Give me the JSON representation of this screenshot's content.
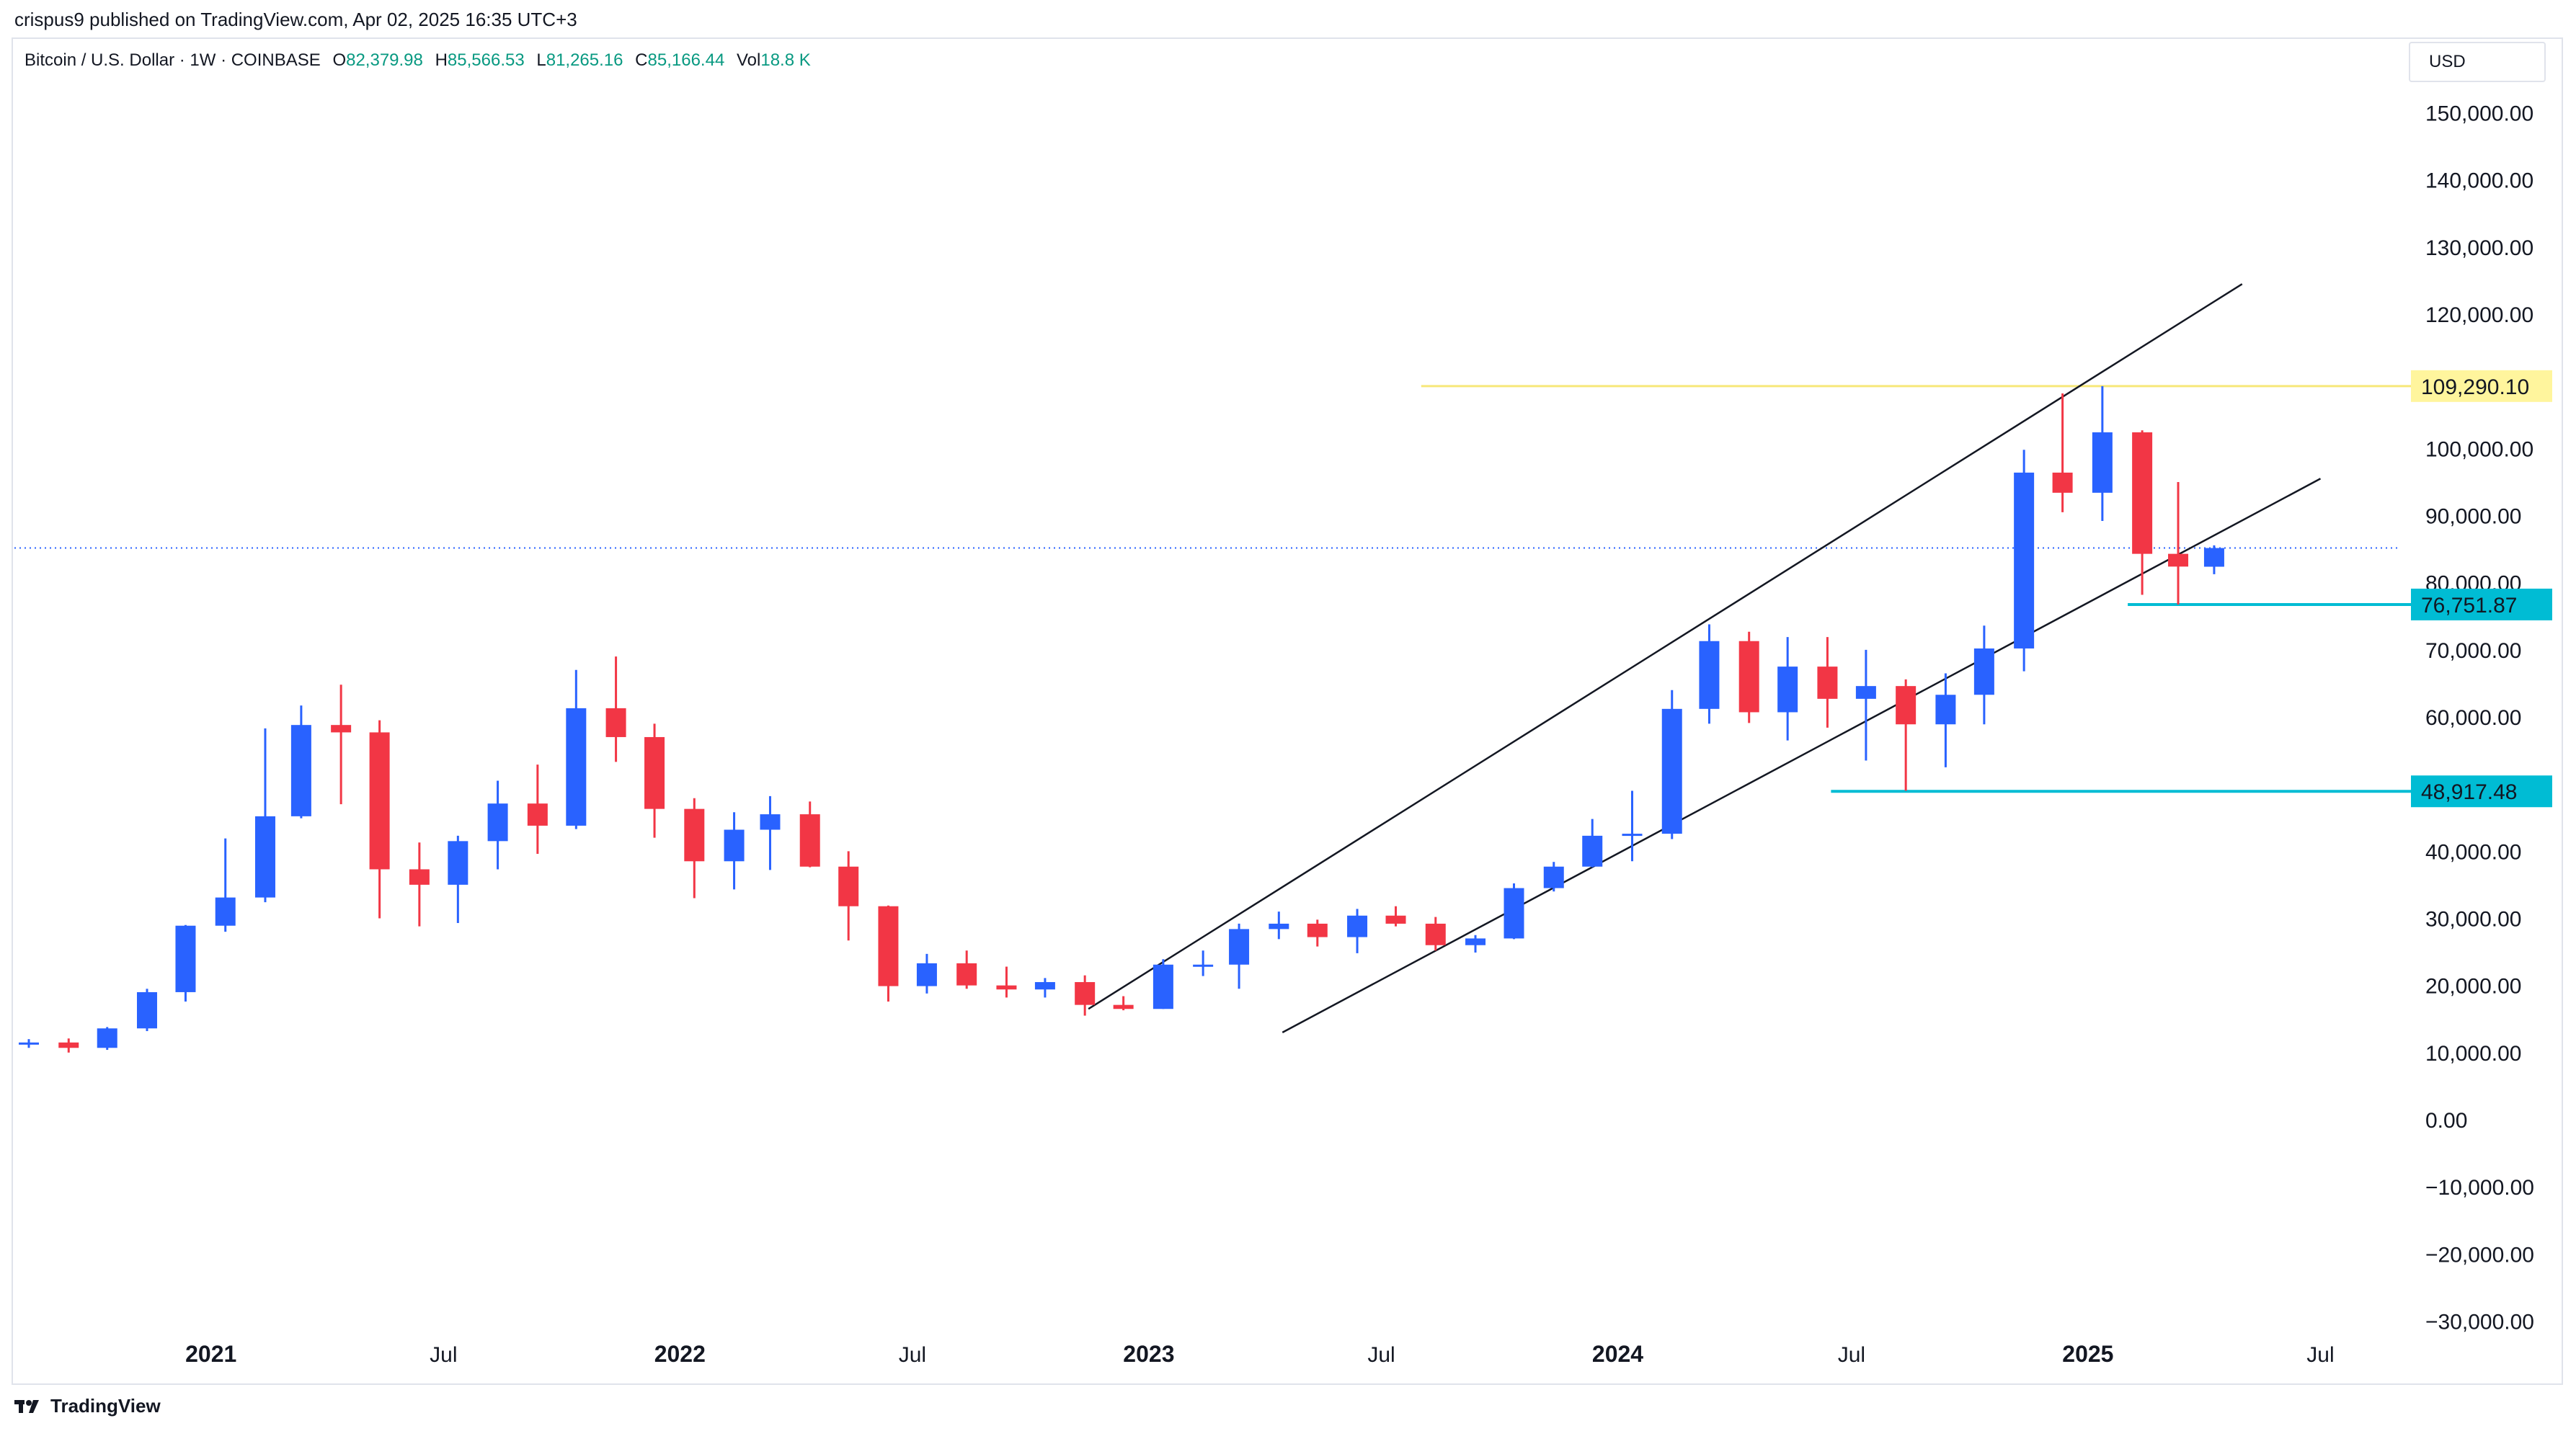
{
  "attribution": "crispus9 published on TradingView.com, Apr 02, 2025 16:35 UTC+3",
  "legend": {
    "symbol": "Bitcoin / U.S. Dollar · 1W · COINBASE",
    "o_label": "O",
    "o_value": "82,379.98",
    "h_label": "H",
    "h_value": "85,566.53",
    "l_label": "L",
    "l_value": "81,265.16",
    "c_label": "C",
    "c_value": "85,166.44",
    "vol_label": "Vol",
    "vol_value": "18.8 K"
  },
  "currency": "USD",
  "brand": "TradingView",
  "chart_data": {
    "type": "candlestick",
    "title": "Bitcoin / U.S. Dollar · 1W · COINBASE",
    "interval": "1W",
    "y_axis": {
      "side": "right",
      "ylim": [
        -35000,
        155000
      ],
      "ticks": [
        150000,
        140000,
        130000,
        120000,
        100000,
        90000,
        80000,
        70000,
        60000,
        40000,
        30000,
        20000,
        10000,
        0,
        -10000,
        -20000,
        -30000
      ],
      "tick_labels": [
        "150,000.00",
        "140,000.00",
        "130,000.00",
        "120,000.00",
        "100,000.00",
        "90,000.00",
        "80,000.00",
        "70,000.00",
        "60,000.00",
        "40,000.00",
        "30,000.00",
        "20,000.00",
        "10,000.00",
        "0.00",
        "−10,000.00",
        "−20,000.00",
        "−30,000.00"
      ]
    },
    "x_axis": {
      "range": [
        "2020-08-01",
        "2025-09-01"
      ],
      "ticks": [
        "2021-01-01",
        "2021-07-01",
        "2022-01-01",
        "2022-07-01",
        "2023-01-01",
        "2023-07-01",
        "2024-01-01",
        "2024-07-01",
        "2025-01-01",
        "2025-07-01"
      ],
      "tick_labels": [
        "2021",
        "Jul",
        "2022",
        "Jul",
        "2023",
        "Jul",
        "2024",
        "Jul",
        "2025",
        "Jul"
      ],
      "bold_labels": [
        "2021",
        "2022",
        "2023",
        "2024",
        "2025"
      ]
    },
    "colors": {
      "up": "#2962ff",
      "down": "#f23645",
      "grid": "#ffffff",
      "yellow_line": "#f7e87a",
      "yellow_label": "#fff59d",
      "cyan": "#00bcd4",
      "trend": "#131722",
      "current_price": "#2962ff"
    },
    "price_levels": [
      {
        "value": 109290.1,
        "label": "109,290.10",
        "color": "yellow",
        "from": "2023-08-01"
      },
      {
        "value": 76751.87,
        "label": "76,751.87",
        "color": "cyan",
        "from": "2025-02-01"
      },
      {
        "value": 48917.48,
        "label": "48,917.48",
        "color": "cyan",
        "from": "2024-06-15"
      }
    ],
    "current_price": 85166.44,
    "trendlines": [
      {
        "name": "upper-channel",
        "start": [
          "2022-11-15",
          16500
        ],
        "end": [
          "2025-05-01",
          124500
        ]
      },
      {
        "name": "lower-channel",
        "start": [
          "2023-04-15",
          13000
        ],
        "end": [
          "2025-07-01",
          95500
        ]
      }
    ],
    "candles": [
      [
        "2020-08-01",
        11200,
        12000,
        10700,
        11500
      ],
      [
        "2020-09-01",
        11500,
        12100,
        10000,
        10700
      ],
      [
        "2020-10-01",
        10700,
        13800,
        10400,
        13600
      ],
      [
        "2020-11-01",
        13600,
        19500,
        13200,
        19000
      ],
      [
        "2020-12-01",
        19000,
        29000,
        17600,
        28900
      ],
      [
        "2021-01-01",
        28900,
        41900,
        28000,
        33100
      ],
      [
        "2021-02-01",
        33100,
        58300,
        32400,
        45200
      ],
      [
        "2021-03-01",
        45200,
        61700,
        44900,
        58800
      ],
      [
        "2021-04-01",
        58800,
        64800,
        47000,
        57700
      ],
      [
        "2021-05-01",
        57700,
        59500,
        30000,
        37300
      ],
      [
        "2021-06-01",
        37300,
        41300,
        28800,
        35000
      ],
      [
        "2021-07-01",
        35000,
        42300,
        29300,
        41500
      ],
      [
        "2021-08-01",
        41500,
        50500,
        37300,
        47100
      ],
      [
        "2021-09-01",
        47100,
        52900,
        39600,
        43800
      ],
      [
        "2021-10-01",
        43800,
        67000,
        43300,
        61300
      ],
      [
        "2021-11-01",
        61300,
        69000,
        53300,
        57000
      ],
      [
        "2021-12-01",
        57000,
        59000,
        42000,
        46300
      ],
      [
        "2022-01-01",
        46300,
        47900,
        33000,
        38500
      ],
      [
        "2022-02-01",
        38500,
        45800,
        34300,
        43200
      ],
      [
        "2022-03-01",
        43200,
        48200,
        37200,
        45500
      ],
      [
        "2022-04-01",
        45500,
        47400,
        37600,
        37700
      ],
      [
        "2022-05-01",
        37700,
        40000,
        26700,
        31800
      ],
      [
        "2022-06-01",
        31800,
        31900,
        17600,
        19900
      ],
      [
        "2022-07-01",
        19900,
        24700,
        18800,
        23300
      ],
      [
        "2022-08-01",
        23300,
        25200,
        19500,
        20000
      ],
      [
        "2022-09-01",
        20000,
        22800,
        18200,
        19400
      ],
      [
        "2022-10-01",
        19400,
        21100,
        18200,
        20500
      ],
      [
        "2022-11-01",
        20500,
        21500,
        15500,
        17100
      ],
      [
        "2022-12-01",
        17100,
        18400,
        16300,
        16500
      ],
      [
        "2023-01-01",
        16500,
        23900,
        16500,
        23100
      ],
      [
        "2023-02-01",
        23100,
        25200,
        21400,
        23100
      ],
      [
        "2023-03-01",
        23100,
        29200,
        19500,
        28400
      ],
      [
        "2023-04-01",
        28400,
        31000,
        26900,
        29200
      ],
      [
        "2023-05-01",
        29200,
        29800,
        25800,
        27200
      ],
      [
        "2023-06-01",
        27200,
        31400,
        24800,
        30400
      ],
      [
        "2023-07-01",
        30400,
        31800,
        28800,
        29200
      ],
      [
        "2023-08-01",
        29200,
        30200,
        25200,
        26000
      ],
      [
        "2023-09-01",
        26000,
        27500,
        24900,
        27000
      ],
      [
        "2023-10-01",
        27000,
        35200,
        26900,
        34500
      ],
      [
        "2023-11-01",
        34500,
        38400,
        34000,
        37700
      ],
      [
        "2023-12-01",
        37700,
        44800,
        37600,
        42300
      ],
      [
        "2024-01-01",
        42300,
        49000,
        38500,
        42600
      ],
      [
        "2024-02-01",
        42600,
        64000,
        41800,
        61200
      ],
      [
        "2024-03-01",
        61200,
        73800,
        59000,
        71300
      ],
      [
        "2024-04-01",
        71300,
        72700,
        59100,
        60700
      ],
      [
        "2024-05-01",
        60700,
        71900,
        56500,
        67500
      ],
      [
        "2024-06-01",
        67500,
        71900,
        58400,
        62700
      ],
      [
        "2024-07-01",
        62700,
        70000,
        53500,
        64600
      ],
      [
        "2024-08-01",
        64600,
        65600,
        49000,
        58900
      ],
      [
        "2024-09-01",
        58900,
        66500,
        52500,
        63300
      ],
      [
        "2024-10-01",
        63300,
        73600,
        58900,
        70200
      ],
      [
        "2024-11-01",
        70200,
        99800,
        66800,
        96400
      ],
      [
        "2024-12-01",
        96400,
        108200,
        90500,
        93400
      ],
      [
        "2025-01-01",
        93400,
        109290,
        89200,
        102400
      ],
      [
        "2025-02-01",
        102400,
        102700,
        78200,
        84300
      ],
      [
        "2025-03-01",
        84300,
        95000,
        76751,
        82400
      ],
      [
        "2025-03-29",
        82380,
        85566,
        81265,
        85166
      ]
    ]
  }
}
